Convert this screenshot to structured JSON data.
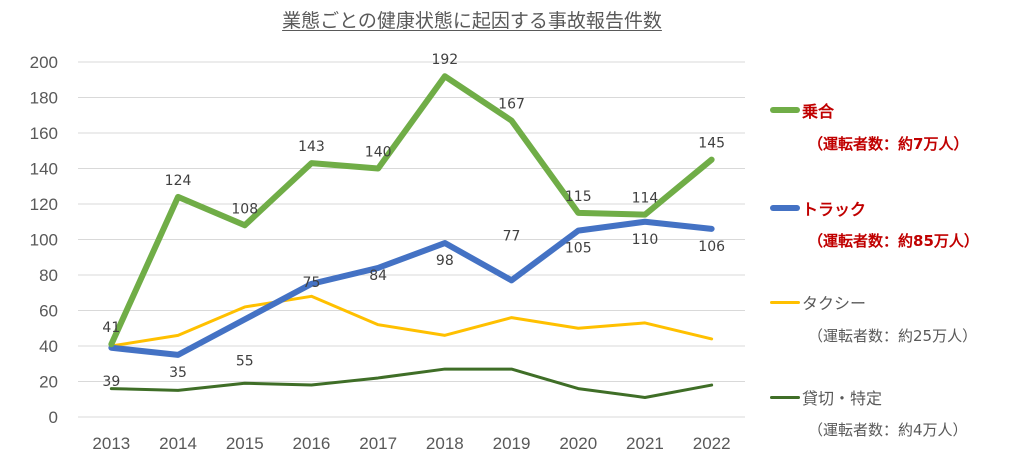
{
  "chart_data": {
    "type": "line",
    "title": "業態ごとの健康状態に起因する事故報告件数",
    "xlabel": "",
    "ylabel": "",
    "categories": [
      "2013",
      "2014",
      "2015",
      "2016",
      "2017",
      "2018",
      "2019",
      "2020",
      "2021",
      "2022"
    ],
    "ylim": [
      0,
      200
    ],
    "yticks": [
      "0",
      "20",
      "40",
      "60",
      "80",
      "100",
      "120",
      "140",
      "160",
      "180",
      "200"
    ],
    "grid": true,
    "legend_position": "right",
    "series": [
      {
        "name": "乗合",
        "sub": "（運転者数：約7万人）",
        "color": "#70ad47",
        "emphasis": true,
        "values": [
          41,
          124,
          108,
          143,
          140,
          192,
          167,
          115,
          114,
          145
        ],
        "labels": [
          "41",
          "124",
          "108",
          "143",
          "140",
          "192",
          "167",
          "115",
          "114",
          "145"
        ]
      },
      {
        "name": "トラック",
        "sub": "（運転者数：約85万人）",
        "color": "#4472c4",
        "emphasis": true,
        "values": [
          39,
          35,
          55,
          75,
          84,
          98,
          77,
          105,
          110,
          106
        ],
        "labels": [
          "39",
          "35",
          "55",
          "75",
          "84",
          "98",
          "77",
          "105",
          "110",
          "106"
        ]
      },
      {
        "name": "タクシー",
        "sub": "（運転者数：約25万人）",
        "color": "#ffc000",
        "emphasis": false,
        "values": [
          40,
          46,
          62,
          68,
          52,
          46,
          56,
          50,
          53,
          44
        ]
      },
      {
        "name": "貸切・特定",
        "sub": "（運転者数：約4万人）",
        "color": "#3f6e27",
        "emphasis": false,
        "values": [
          16,
          15,
          19,
          18,
          22,
          27,
          27,
          16,
          11,
          18
        ]
      }
    ]
  }
}
